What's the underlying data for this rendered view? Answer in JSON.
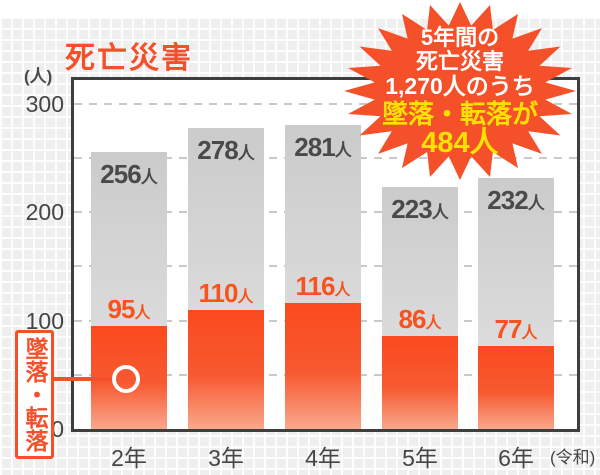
{
  "title": "死亡災害",
  "y_axis": {
    "unit": "(人)",
    "tick_labels": [
      "0",
      "100",
      "200",
      "300"
    ]
  },
  "x_axis": {
    "era_note": "(令和)"
  },
  "labels": {
    "person_suffix": "人"
  },
  "side_label": {
    "text": "墜落・転落"
  },
  "badge": {
    "lines": [
      {
        "text": "5年間の",
        "color": "#FFFFFF"
      },
      {
        "text": "死亡災害",
        "color": "#FFFFFF"
      },
      {
        "text": "1,270人のうち",
        "color": "#FFFFFF"
      },
      {
        "text": "墜落・転落が",
        "color": "#FFE100"
      },
      {
        "text": "484人",
        "color": "#FFE100"
      }
    ]
  },
  "colors": {
    "accent_orange": "#F4502A",
    "bar_red_top": "#FB4A1E",
    "bar_red_bottom": "#F9A88C",
    "bar_gray": "#D2D2D2",
    "dark_text": "#4A4A4A",
    "axis": "#3E3E3E",
    "gridline": "#C9C9C9",
    "badge_yellow": "#FFE100",
    "paper_bg": "#EFEFEF"
  },
  "chart_data": {
    "type": "bar",
    "stacked": true,
    "title": "死亡災害",
    "ylabel": "(人)",
    "ylim": [
      0,
      300
    ],
    "gridline_step": 50,
    "ytick_step": 100,
    "grid": "dashed-horizontal",
    "categories": [
      "2年",
      "3年",
      "4年",
      "5年",
      "6年"
    ],
    "era_suffix": "(令和)",
    "series": [
      {
        "name": "死亡災害",
        "values": [
          256,
          278,
          281,
          223,
          232
        ]
      },
      {
        "name": "墜落・転落",
        "values": [
          95,
          110,
          116,
          86,
          77
        ]
      }
    ],
    "annotation": "5年間の死亡災害1,270人のうち墜落・転落が484人"
  }
}
